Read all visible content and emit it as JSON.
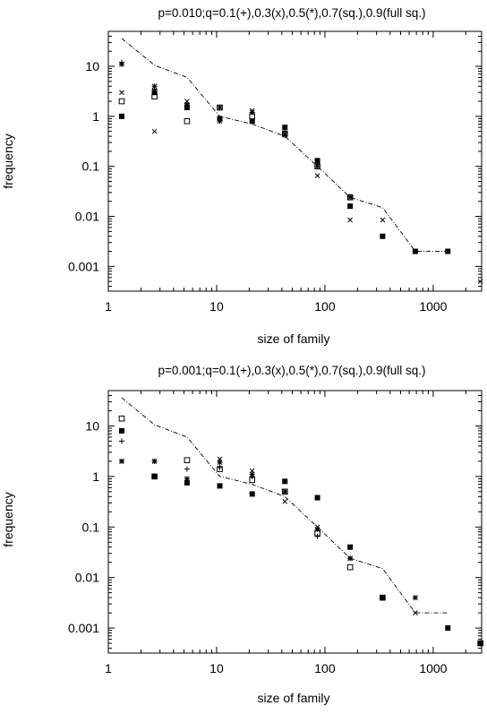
{
  "chart_data": [
    {
      "type": "scatter",
      "title": "p=0.010;q=0.1(+),0.3(x),0.5(*),0.7(sq.),0.9(full sq.)",
      "xlabel": "size of family",
      "ylabel": "frequency",
      "xscale": "log",
      "yscale": "log",
      "xlim": [
        1,
        2800
      ],
      "ylim": [
        0.00032,
        50
      ],
      "xticks": [
        1,
        10,
        100,
        1000
      ],
      "xtick_labels": [
        "1",
        "10",
        "100",
        "1000"
      ],
      "yticks": [
        10,
        1,
        0.1,
        0.01,
        0.001
      ],
      "ytick_labels": [
        "10",
        "1",
        "0.1",
        "0.01",
        "0.001"
      ],
      "reference_line": [
        [
          1.33,
          36
        ],
        [
          2.67,
          10.5
        ],
        [
          5.33,
          6
        ],
        [
          10.7,
          1
        ],
        [
          21.3,
          0.7
        ],
        [
          42.7,
          0.4
        ],
        [
          85.3,
          0.1
        ],
        [
          171,
          0.024
        ],
        [
          341,
          0.015
        ],
        [
          683,
          0.002
        ],
        [
          1365,
          0.002
        ]
      ],
      "series": [
        {
          "marker": "plus",
          "x": [
            1.33,
            2.67,
            5.33,
            10.7,
            21.3,
            42.7,
            85.3,
            171
          ],
          "y": [
            12,
            3.5,
            1.8,
            1.5,
            1.2,
            0.5,
            0.11,
            0.025
          ]
        },
        {
          "marker": "cross",
          "x": [
            1.33,
            2.67,
            5.33,
            10.7,
            21.3,
            42.7,
            85.3,
            171,
            341,
            2730
          ],
          "y": [
            3,
            0.5,
            2,
            1.5,
            1.3,
            0.45,
            0.065,
            0.0085,
            0.0085,
            0.0005
          ]
        },
        {
          "marker": "star",
          "x": [
            1.33,
            2.67,
            5.33,
            10.7,
            21.3,
            42.7,
            85.3,
            171
          ],
          "y": [
            11,
            4,
            1.7,
            0.8,
            1.2,
            0.42,
            0.1,
            0.024
          ]
        },
        {
          "marker": "square",
          "x": [
            1.33,
            2.67,
            5.33,
            10.7,
            21.3,
            42.7,
            85.3,
            171
          ],
          "y": [
            2,
            2.5,
            0.8,
            1.5,
            1.0,
            0.45,
            0.1,
            0.024
          ]
        },
        {
          "marker": "full-square",
          "x": [
            1.33,
            2.67,
            5.33,
            10.7,
            21.3,
            42.7,
            85.3,
            171,
            341,
            683,
            1365
          ],
          "y": [
            1,
            3,
            1.5,
            0.9,
            0.8,
            0.6,
            0.13,
            0.016,
            0.004,
            0.002,
            0.002
          ]
        }
      ]
    },
    {
      "type": "scatter",
      "title": "p=0.001;q=0.1(+),0.3(x),0.5(*),0.7(sq.),0.9(full sq.)",
      "xlabel": "size of family",
      "ylabel": "frequency",
      "xscale": "log",
      "yscale": "log",
      "xlim": [
        1,
        2800
      ],
      "ylim": [
        0.00032,
        50
      ],
      "xticks": [
        1,
        10,
        100,
        1000
      ],
      "xtick_labels": [
        "1",
        "10",
        "100",
        "1000"
      ],
      "yticks": [
        10,
        1,
        0.1,
        0.01,
        0.001
      ],
      "ytick_labels": [
        "10",
        "1",
        "0.1",
        "0.01",
        "0.001"
      ],
      "reference_line": [
        [
          1.33,
          36
        ],
        [
          2.67,
          10.5
        ],
        [
          5.33,
          6
        ],
        [
          10.7,
          1
        ],
        [
          21.3,
          0.7
        ],
        [
          42.7,
          0.4
        ],
        [
          85.3,
          0.1
        ],
        [
          171,
          0.024
        ],
        [
          341,
          0.015
        ],
        [
          683,
          0.002
        ],
        [
          1365,
          0.002
        ]
      ],
      "series": [
        {
          "marker": "plus",
          "x": [
            1.33,
            2.67,
            5.33,
            10.7,
            21.3,
            42.7,
            85.3,
            171
          ],
          "y": [
            5,
            2,
            1.4,
            1.5,
            1.0,
            0.5,
            0.065,
            0.024
          ]
        },
        {
          "marker": "cross",
          "x": [
            1.33,
            2.67,
            5.33,
            10.7,
            21.3,
            42.7,
            85.3,
            171,
            341,
            683,
            2730
          ],
          "y": [
            2,
            2,
            0.9,
            2.2,
            1.3,
            0.32,
            0.1,
            0.024,
            0.004,
            0.002,
            0.0005
          ]
        },
        {
          "marker": "star",
          "x": [
            1.33,
            2.67,
            5.33,
            10.7,
            21.3,
            42.7,
            85.3,
            171,
            341,
            683,
            2730
          ],
          "y": [
            2,
            2,
            0.9,
            1.9,
            1.1,
            0.5,
            0.09,
            0.024,
            0.004,
            0.004,
            0.0005
          ]
        },
        {
          "marker": "square",
          "x": [
            1.33,
            2.67,
            5.33,
            10.7,
            21.3,
            42.7,
            85.3,
            171,
            341,
            2730
          ],
          "y": [
            14,
            1.0,
            2.1,
            1.4,
            0.85,
            0.5,
            0.075,
            0.016,
            0.004,
            0.0005
          ]
        },
        {
          "marker": "full-square",
          "x": [
            1.33,
            2.67,
            5.33,
            10.7,
            21.3,
            42.7,
            85.3,
            171,
            341,
            1365,
            2730
          ],
          "y": [
            8,
            1.0,
            0.75,
            0.65,
            0.45,
            0.8,
            0.38,
            0.04,
            0.004,
            0.001,
            0.0005
          ]
        }
      ]
    }
  ]
}
